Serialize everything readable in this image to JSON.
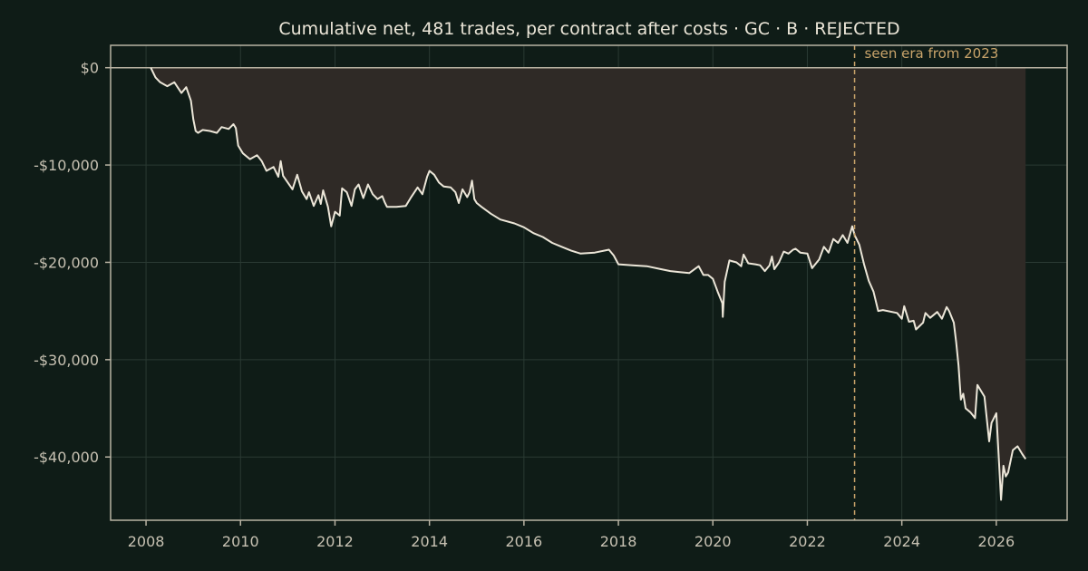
{
  "chart_data": {
    "type": "area",
    "title": "Cumulative net, 481 trades, per contract after costs  ·  GC · B · REJECTED",
    "xlabel": "",
    "ylabel": "",
    "xlim": [
      2007.25,
      2027.5
    ],
    "ylim": [
      -46500,
      2300
    ],
    "grid": true,
    "legend": "none",
    "x_ticks": [
      2008,
      2010,
      2012,
      2014,
      2016,
      2018,
      2020,
      2022,
      2024,
      2026
    ],
    "x_tick_labels": [
      "2008",
      "2010",
      "2012",
      "2014",
      "2016",
      "2018",
      "2020",
      "2022",
      "2024",
      "2026"
    ],
    "y_ticks": [
      0,
      -10000,
      -20000,
      -30000,
      -40000
    ],
    "y_tick_labels": [
      "$0",
      "-$10,000",
      "-$20,000",
      "-$30,000",
      "-$40,000"
    ],
    "reference_line": {
      "y": 0
    },
    "annotation": {
      "x": 2023.0,
      "label": "seen era from 2023",
      "style": "dashed-vertical"
    },
    "colors": {
      "line": "#ece6d8",
      "fill": "#2f2a26",
      "annotation": "#c9a46a",
      "background": "#0f1c17",
      "frame": "#b9b3a3",
      "grid": "#2a3a33"
    },
    "series": [
      {
        "x": [
          2008.1,
          2008.2,
          2008.3,
          2008.45,
          2008.6,
          2008.75,
          2008.85,
          2008.95,
          2009.0,
          2009.05,
          2009.1,
          2009.2,
          2009.35,
          2009.5,
          2009.6,
          2009.75,
          2009.85,
          2009.9,
          2009.95,
          2010.05,
          2010.2,
          2010.35,
          2010.45,
          2010.55,
          2010.7,
          2010.8,
          2010.85,
          2010.9,
          2011.0,
          2011.1,
          2011.2,
          2011.3,
          2011.4,
          2011.45,
          2011.55,
          2011.65,
          2011.7,
          2011.75,
          2011.85,
          2011.92,
          2012.0,
          2012.1,
          2012.15,
          2012.25,
          2012.35,
          2012.42,
          2012.5,
          2012.6,
          2012.7,
          2012.8,
          2012.9,
          2013.0,
          2013.05,
          2013.1,
          2013.3,
          2013.5,
          2013.6,
          2013.75,
          2013.85,
          2013.95,
          2014.0,
          2014.1,
          2014.2,
          2014.3,
          2014.45,
          2014.55,
          2014.62,
          2014.7,
          2014.8,
          2014.85,
          2014.9,
          2014.95,
          2015.0,
          2015.1,
          2015.3,
          2015.5,
          2015.8,
          2016.0,
          2016.2,
          2016.4,
          2016.6,
          2016.8,
          2017.0,
          2017.2,
          2017.5,
          2017.8,
          2017.9,
          2018.0,
          2018.3,
          2018.6,
          2018.9,
          2019.1,
          2019.3,
          2019.5,
          2019.7,
          2019.8,
          2019.9,
          2020.0,
          2020.1,
          2020.2,
          2020.21,
          2020.25,
          2020.35,
          2020.5,
          2020.6,
          2020.65,
          2020.75,
          2020.9,
          2021.0,
          2021.1,
          2021.2,
          2021.25,
          2021.3,
          2021.4,
          2021.5,
          2021.6,
          2021.7,
          2021.75,
          2021.85,
          2022.0,
          2022.1,
          2022.25,
          2022.35,
          2022.45,
          2022.55,
          2022.65,
          2022.75,
          2022.85,
          2022.95,
          2023.0,
          2023.1,
          2023.2,
          2023.3,
          2023.4,
          2023.5,
          2023.6,
          2023.9,
          2024.0,
          2024.05,
          2024.15,
          2024.25,
          2024.3,
          2024.45,
          2024.5,
          2024.6,
          2024.75,
          2024.85,
          2024.95,
          2025.0,
          2025.1,
          2025.15,
          2025.2,
          2025.25,
          2025.3,
          2025.35,
          2025.45,
          2025.55,
          2025.6,
          2025.75,
          2025.85,
          2025.9,
          2026.0,
          2026.1,
          2026.15,
          2026.2,
          2026.25,
          2026.35,
          2026.45,
          2026.55,
          2026.62
        ],
        "y": [
          0,
          -1000,
          -1500,
          -1900,
          -1500,
          -2600,
          -2000,
          -3400,
          -5300,
          -6500,
          -6700,
          -6400,
          -6500,
          -6700,
          -6100,
          -6300,
          -5800,
          -6200,
          -8000,
          -8800,
          -9400,
          -9000,
          -9600,
          -10600,
          -10200,
          -11200,
          -9600,
          -11100,
          -11800,
          -12500,
          -11000,
          -12700,
          -13500,
          -12800,
          -14200,
          -13100,
          -14000,
          -12600,
          -14300,
          -16300,
          -14800,
          -15200,
          -12400,
          -12800,
          -14200,
          -12500,
          -12000,
          -13400,
          -12000,
          -13000,
          -13500,
          -13200,
          -13800,
          -14300,
          -14300,
          -14200,
          -13400,
          -12300,
          -13000,
          -11200,
          -10600,
          -11000,
          -11800,
          -12200,
          -12300,
          -12800,
          -13900,
          -12500,
          -13300,
          -12800,
          -11600,
          -13500,
          -13900,
          -14300,
          -15000,
          -15600,
          -16000,
          -16400,
          -17000,
          -17400,
          -18000,
          -18400,
          -18800,
          -19100,
          -19000,
          -18700,
          -19300,
          -20200,
          -20300,
          -20400,
          -20700,
          -20900,
          -21000,
          -21100,
          -20400,
          -21300,
          -21300,
          -21700,
          -23000,
          -24200,
          -25600,
          -22000,
          -19800,
          -20000,
          -20400,
          -19200,
          -20100,
          -20200,
          -20300,
          -20900,
          -20300,
          -19400,
          -20700,
          -20000,
          -18900,
          -19100,
          -18700,
          -18600,
          -19000,
          -19100,
          -20600,
          -19700,
          -18400,
          -19000,
          -17600,
          -18000,
          -17200,
          -18000,
          -16300,
          -17200,
          -18200,
          -20200,
          -21900,
          -23000,
          -25000,
          -24900,
          -25200,
          -25800,
          -24500,
          -26100,
          -26000,
          -26900,
          -26200,
          -25200,
          -25700,
          -25100,
          -25800,
          -24600,
          -25000,
          -26200,
          -28200,
          -30600,
          -34100,
          -33500,
          -35000,
          -35400,
          -36000,
          -32600,
          -33800,
          -38400,
          -36500,
          -35500,
          -44400,
          -40900,
          -42000,
          -41600,
          -39300,
          -38900,
          -39700,
          -40200
        ]
      }
    ]
  }
}
